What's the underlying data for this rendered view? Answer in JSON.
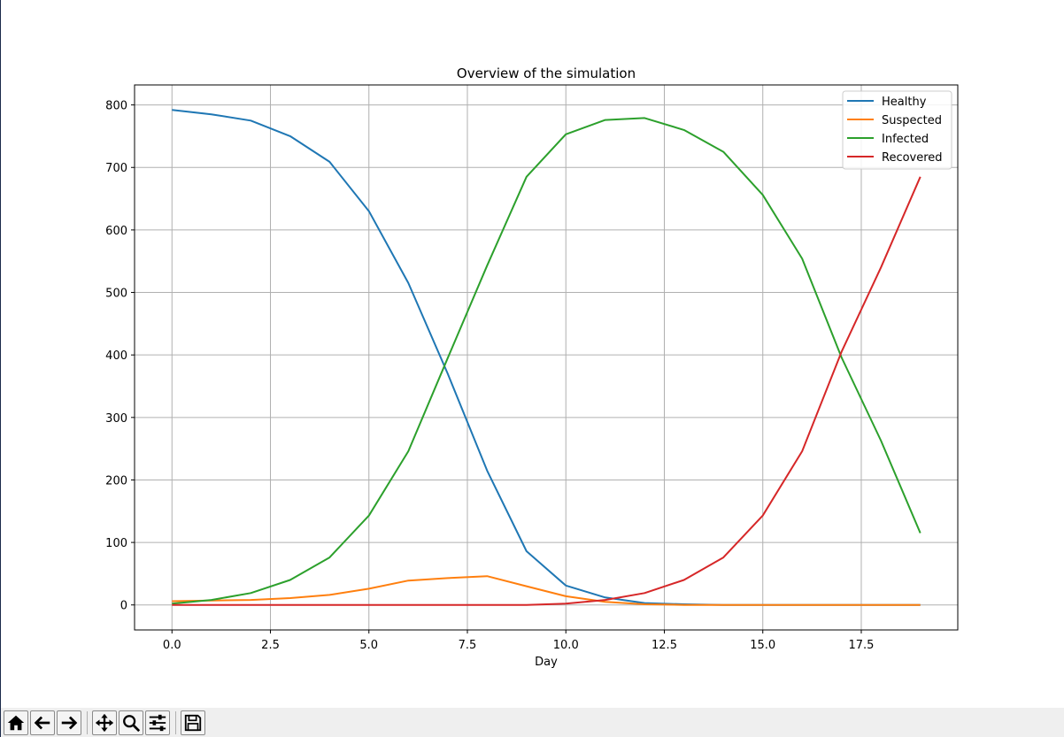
{
  "chart_data": {
    "type": "line",
    "title": "Overview of the simulation",
    "xlabel": "Day",
    "ylabel": "",
    "xlim": [
      -0.95,
      19.95
    ],
    "ylim": [
      -40,
      832
    ],
    "xticks": [
      0.0,
      2.5,
      5.0,
      7.5,
      10.0,
      12.5,
      15.0,
      17.5
    ],
    "xtick_labels": [
      "0.0",
      "2.5",
      "5.0",
      "7.5",
      "10.0",
      "12.5",
      "15.0",
      "17.5"
    ],
    "yticks": [
      0,
      100,
      200,
      300,
      400,
      500,
      600,
      700,
      800
    ],
    "ytick_labels": [
      "0",
      "100",
      "200",
      "300",
      "400",
      "500",
      "600",
      "700",
      "800"
    ],
    "grid": true,
    "legend_position": "top-right",
    "x": [
      0,
      1,
      2,
      3,
      4,
      5,
      6,
      7,
      8,
      9,
      10,
      11,
      12,
      13,
      14,
      15,
      16,
      17,
      18,
      19
    ],
    "series": [
      {
        "name": "Healthy",
        "color": "#1f77b4",
        "values": [
          792,
          785,
          775,
          750,
          709,
          630,
          515,
          370,
          215,
          86,
          31,
          12,
          3,
          1,
          0,
          0,
          0,
          0,
          0,
          0
        ]
      },
      {
        "name": "Suspected",
        "color": "#ff7f0e",
        "values": [
          6,
          7,
          8,
          11,
          16,
          26,
          39,
          43,
          46,
          30,
          14,
          5,
          1,
          0,
          0,
          0,
          0,
          0,
          0,
          0
        ]
      },
      {
        "name": "Infected",
        "color": "#2ca02c",
        "values": [
          2,
          8,
          19,
          40,
          76,
          143,
          246,
          395,
          543,
          685,
          753,
          776,
          779,
          760,
          725,
          656,
          554,
          396,
          263,
          115
        ]
      },
      {
        "name": "Recovered",
        "color": "#d62728",
        "values": [
          0,
          0,
          0,
          0,
          0,
          0,
          0,
          0,
          0,
          0,
          2,
          8,
          19,
          40,
          76,
          143,
          246,
          405,
          540,
          685
        ]
      }
    ]
  },
  "toolbar": {
    "buttons": [
      {
        "name": "home-icon",
        "icon": "home"
      },
      {
        "name": "back-arrow-icon",
        "icon": "back"
      },
      {
        "name": "forward-arrow-icon",
        "icon": "forward"
      },
      {
        "name": "pan-icon",
        "icon": "pan"
      },
      {
        "name": "zoom-icon",
        "icon": "zoom"
      },
      {
        "name": "configure-subplots-icon",
        "icon": "subplots"
      },
      {
        "name": "save-icon",
        "icon": "save"
      }
    ]
  }
}
